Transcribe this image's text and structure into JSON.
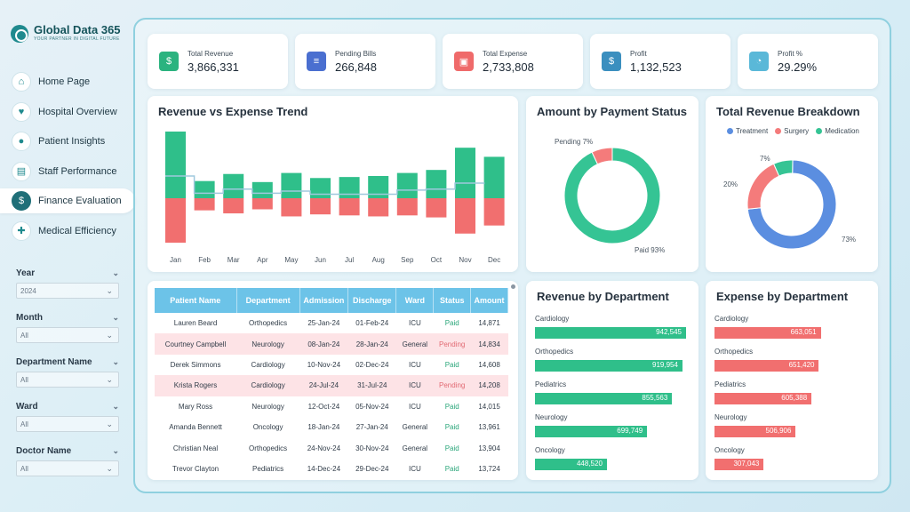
{
  "brand": {
    "title": "Global Data 365",
    "subtitle": "YOUR PARTNER IN DIGITAL FUTURE"
  },
  "nav": [
    {
      "label": "Home Page",
      "icon": "home-icon",
      "glyph": "⌂"
    },
    {
      "label": "Hospital Overview",
      "icon": "heart-icon",
      "glyph": "♥"
    },
    {
      "label": "Patient Insights",
      "icon": "patient-icon",
      "glyph": "●"
    },
    {
      "label": "Staff Performance",
      "icon": "chart-icon",
      "glyph": "▤"
    },
    {
      "label": "Finance Evaluation",
      "icon": "finance-icon",
      "glyph": "$",
      "active": true
    },
    {
      "label": "Medical Efficiency",
      "icon": "shield-icon",
      "glyph": "✚"
    }
  ],
  "filters": [
    {
      "label": "Year",
      "value": "2024"
    },
    {
      "label": "Month",
      "value": "All"
    },
    {
      "label": "Department Name",
      "value": "All"
    },
    {
      "label": "Ward",
      "value": "All"
    },
    {
      "label": "Doctor Name",
      "value": "All"
    }
  ],
  "kpis": [
    {
      "label": "Total Revenue",
      "value": "3,866,331",
      "icon": "money-bag-icon",
      "glyph": "$",
      "color": "#2bb37f"
    },
    {
      "label": "Pending Bills",
      "value": "266,848",
      "icon": "bill-icon",
      "glyph": "≡",
      "color": "#4a6fd0"
    },
    {
      "label": "Total Expense",
      "value": "2,733,808",
      "icon": "wallet-icon",
      "glyph": "▣",
      "color": "#ef6a6a"
    },
    {
      "label": "Profit",
      "value": "1,132,523",
      "icon": "profit-icon",
      "glyph": "$",
      "color": "#3b8fbf"
    },
    {
      "label": "Profit %",
      "value": "29.29%",
      "icon": "pie-icon",
      "glyph": "◔",
      "color": "#5ab8d8"
    }
  ],
  "trend": {
    "title": "Revenue vs Expense Trend",
    "chart_data": {
      "type": "bar",
      "categories": [
        "Jan",
        "Feb",
        "Mar",
        "Apr",
        "May",
        "Jun",
        "Jul",
        "Aug",
        "Sep",
        "Oct",
        "Nov",
        "Dec"
      ],
      "series": [
        {
          "values": [
            330000,
            85000,
            120000,
            80000,
            125000,
            100000,
            105000,
            110000,
            125000,
            140000,
            250000,
            205000
          ],
          "color": "#2fbf8a"
        },
        {
          "values": [
            -220000,
            -60000,
            -75000,
            -55000,
            -90000,
            -80000,
            -85000,
            -90000,
            -85000,
            -95000,
            -175000,
            -135000
          ],
          "color": "#f16f6f"
        }
      ],
      "colors": {
        "line": "#9fc8dd"
      }
    }
  },
  "payment": {
    "title": "Amount by Payment Status",
    "chart_data": {
      "type": "pie",
      "labels": [
        "Paid",
        "Pending"
      ],
      "values": [
        93,
        7
      ],
      "colors": [
        "#35c494",
        "#f47b7b"
      ],
      "data_labels": [
        "Paid 93%",
        "Pending 7%"
      ]
    }
  },
  "breakdown": {
    "title": "Total Revenue Breakdown",
    "chart_data": {
      "type": "pie",
      "labels": [
        "Treatment",
        "Surgery",
        "Medication"
      ],
      "values": [
        73,
        20,
        7
      ],
      "colors": [
        "#5b8ee0",
        "#f47b7b",
        "#35c494"
      ],
      "data_labels": [
        "73%",
        "20%",
        "7%"
      ]
    }
  },
  "table": {
    "headers": [
      "Patient Name",
      "Department",
      "Admission",
      "Discharge",
      "Ward",
      "Status",
      "Amount"
    ],
    "rows": [
      [
        "Lauren Beard",
        "Orthopedics",
        "25-Jan-24",
        "01-Feb-24",
        "ICU",
        "Paid",
        "14,871"
      ],
      [
        "Courtney Campbell",
        "Neurology",
        "08-Jan-24",
        "28-Jan-24",
        "General",
        "Pending",
        "14,834"
      ],
      [
        "Derek Simmons",
        "Cardiology",
        "10-Nov-24",
        "02-Dec-24",
        "ICU",
        "Paid",
        "14,608"
      ],
      [
        "Krista Rogers",
        "Cardiology",
        "24-Jul-24",
        "31-Jul-24",
        "ICU",
        "Pending",
        "14,208"
      ],
      [
        "Mary Ross",
        "Neurology",
        "12-Oct-24",
        "05-Nov-24",
        "ICU",
        "Paid",
        "14,015"
      ],
      [
        "Amanda Bennett",
        "Oncology",
        "18-Jan-24",
        "27-Jan-24",
        "General",
        "Paid",
        "13,961"
      ],
      [
        "Christian Neal",
        "Orthopedics",
        "24-Nov-24",
        "30-Nov-24",
        "General",
        "Paid",
        "13,904"
      ],
      [
        "Trevor Clayton",
        "Pediatrics",
        "14-Dec-24",
        "29-Dec-24",
        "ICU",
        "Paid",
        "13,724"
      ]
    ]
  },
  "rev_dept": {
    "title": "Revenue by Department",
    "chart_data": {
      "type": "bar",
      "categories": [
        "Cardiology",
        "Orthopedics",
        "Pediatrics",
        "Neurology",
        "Oncology"
      ],
      "values": [
        942545,
        919954,
        855563,
        699749,
        448520
      ],
      "labels": [
        "942,545",
        "919,954",
        "855,563",
        "699,749",
        "448,520"
      ],
      "color": "#2fbf8a"
    }
  },
  "exp_dept": {
    "title": "Expense by Department",
    "chart_data": {
      "type": "bar",
      "categories": [
        "Cardiology",
        "Orthopedics",
        "Pediatrics",
        "Neurology",
        "Oncology"
      ],
      "values": [
        663051,
        651420,
        605388,
        506906,
        307043
      ],
      "labels": [
        "663,051",
        "651,420",
        "605,388",
        "506,906",
        "307,043"
      ],
      "color": "#f16f6f"
    }
  }
}
